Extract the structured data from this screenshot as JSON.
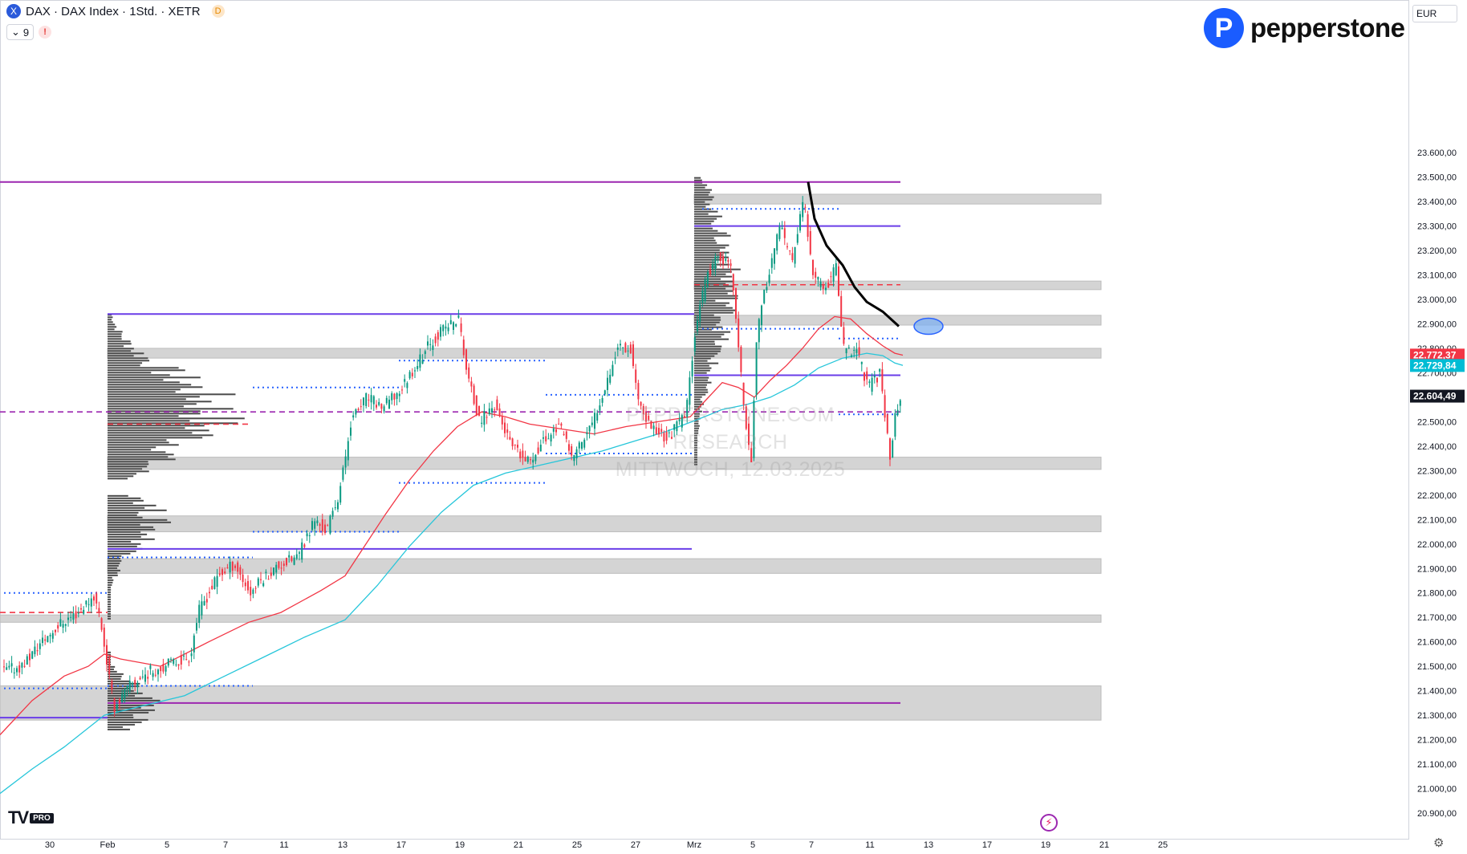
{
  "header": {
    "symbol_icon": "X",
    "title": "DAX · DAX Index · 1Std. · XETR",
    "delay_badge": "D",
    "indicator_count": "9",
    "warning": "!"
  },
  "brand": {
    "logo_letter": "P",
    "name": "pepperstone"
  },
  "currency": "EUR",
  "watermark": {
    "line1": "PEPPERSTONE.COM RESEARCH",
    "line2": "MITTWOCH, 12.03.2025"
  },
  "tv_logo": {
    "mark": "TV",
    "pro": "PRO"
  },
  "icons": {
    "indicator_button": "indicator-icon",
    "gear": "gear-icon",
    "bolt": "bolt-icon"
  },
  "chart_data": {
    "type": "candlestick",
    "ylim": [
      20850,
      23650
    ],
    "y_ticks": [
      "20.900,00",
      "21.000,00",
      "21.100,00",
      "21.200,00",
      "21.300,00",
      "21.400,00",
      "21.500,00",
      "21.600,00",
      "21.700,00",
      "21.800,00",
      "21.900,00",
      "22.000,00",
      "22.100,00",
      "22.200,00",
      "22.300,00",
      "22.400,00",
      "22.500,00",
      "22.600,00",
      "22.700,00",
      "22.800,00",
      "22.900,00",
      "23.000,00",
      "23.100,00",
      "23.200,00",
      "23.300,00",
      "23.400,00",
      "23.500,00",
      "23.600,00"
    ],
    "y_tick_values": [
      20900,
      21000,
      21100,
      21200,
      21300,
      21400,
      21500,
      21600,
      21700,
      21800,
      21900,
      22000,
      22100,
      22200,
      22300,
      22400,
      22500,
      22600,
      22700,
      22800,
      22900,
      23000,
      23100,
      23200,
      23300,
      23400,
      23500,
      23600
    ],
    "x_ticks": [
      "30",
      "Feb",
      "5",
      "7",
      "11",
      "13",
      "17",
      "19",
      "21",
      "25",
      "27",
      "Mrz",
      "5",
      "7",
      "11",
      "13",
      "17",
      "19",
      "21",
      "25"
    ],
    "x_tick_positions": [
      62,
      134,
      208,
      281,
      354,
      427,
      500,
      573,
      646,
      719,
      792,
      865,
      938,
      1011,
      1084,
      1157,
      1230,
      1303,
      1376,
      1449
    ],
    "price_labels": [
      {
        "text": "22.772,37",
        "value": 22772.37,
        "color": "#f23645"
      },
      {
        "text": "22.729,84",
        "value": 22729.84,
        "color": "#00bcd4"
      },
      {
        "text": "22.604,49",
        "value": 22604.49,
        "color": "#131722"
      }
    ],
    "price_path": [
      [
        5,
        21480
      ],
      [
        30,
        21500
      ],
      [
        55,
        21600
      ],
      [
        80,
        21680
      ],
      [
        100,
        21720
      ],
      [
        120,
        21790
      ],
      [
        128,
        21700
      ],
      [
        145,
        21330
      ],
      [
        165,
        21420
      ],
      [
        190,
        21480
      ],
      [
        215,
        21510
      ],
      [
        240,
        21540
      ],
      [
        250,
        21720
      ],
      [
        275,
        21870
      ],
      [
        295,
        21920
      ],
      [
        315,
        21800
      ],
      [
        330,
        21860
      ],
      [
        350,
        21910
      ],
      [
        375,
        21950
      ],
      [
        395,
        22100
      ],
      [
        410,
        22050
      ],
      [
        425,
        22200
      ],
      [
        432,
        22320
      ],
      [
        440,
        22500
      ],
      [
        460,
        22600
      ],
      [
        480,
        22560
      ],
      [
        500,
        22620
      ],
      [
        515,
        22700
      ],
      [
        535,
        22800
      ],
      [
        555,
        22880
      ],
      [
        575,
        22920
      ],
      [
        585,
        22700
      ],
      [
        600,
        22500
      ],
      [
        620,
        22570
      ],
      [
        640,
        22400
      ],
      [
        660,
        22330
      ],
      [
        680,
        22420
      ],
      [
        700,
        22490
      ],
      [
        715,
        22350
      ],
      [
        740,
        22480
      ],
      [
        760,
        22680
      ],
      [
        775,
        22820
      ],
      [
        790,
        22790
      ],
      [
        800,
        22550
      ],
      [
        815,
        22480
      ],
      [
        835,
        22430
      ],
      [
        850,
        22500
      ],
      [
        858,
        22530
      ],
      [
        870,
        22900
      ],
      [
        885,
        23100
      ],
      [
        900,
        23180
      ],
      [
        915,
        23120
      ],
      [
        930,
        22550
      ],
      [
        940,
        22330
      ],
      [
        945,
        22830
      ],
      [
        960,
        23100
      ],
      [
        975,
        23300
      ],
      [
        990,
        23150
      ],
      [
        1005,
        23420
      ],
      [
        1015,
        23100
      ],
      [
        1030,
        23040
      ],
      [
        1045,
        23130
      ],
      [
        1055,
        22780
      ],
      [
        1070,
        22800
      ],
      [
        1085,
        22640
      ],
      [
        1100,
        22700
      ],
      [
        1108,
        22480
      ],
      [
        1113,
        22330
      ],
      [
        1118,
        22520
      ],
      [
        1125,
        22600
      ]
    ],
    "ma_red": [
      [
        0,
        21220
      ],
      [
        40,
        21360
      ],
      [
        80,
        21460
      ],
      [
        110,
        21500
      ],
      [
        130,
        21550
      ],
      [
        150,
        21530
      ],
      [
        200,
        21500
      ],
      [
        260,
        21600
      ],
      [
        310,
        21680
      ],
      [
        350,
        21720
      ],
      [
        400,
        21810
      ],
      [
        430,
        21870
      ],
      [
        450,
        21970
      ],
      [
        480,
        22120
      ],
      [
        510,
        22260
      ],
      [
        540,
        22380
      ],
      [
        570,
        22480
      ],
      [
        600,
        22540
      ],
      [
        630,
        22520
      ],
      [
        660,
        22490
      ],
      [
        700,
        22470
      ],
      [
        740,
        22450
      ],
      [
        780,
        22480
      ],
      [
        820,
        22500
      ],
      [
        860,
        22520
      ],
      [
        880,
        22590
      ],
      [
        900,
        22660
      ],
      [
        920,
        22640
      ],
      [
        940,
        22600
      ],
      [
        960,
        22670
      ],
      [
        980,
        22730
      ],
      [
        1000,
        22800
      ],
      [
        1020,
        22880
      ],
      [
        1040,
        22930
      ],
      [
        1060,
        22920
      ],
      [
        1080,
        22860
      ],
      [
        1100,
        22810
      ],
      [
        1115,
        22780
      ],
      [
        1125,
        22772
      ]
    ],
    "ma_cyan": [
      [
        0,
        20980
      ],
      [
        40,
        21080
      ],
      [
        80,
        21170
      ],
      [
        130,
        21300
      ],
      [
        180,
        21340
      ],
      [
        230,
        21380
      ],
      [
        280,
        21460
      ],
      [
        330,
        21540
      ],
      [
        380,
        21620
      ],
      [
        430,
        21690
      ],
      [
        470,
        21830
      ],
      [
        510,
        21990
      ],
      [
        550,
        22130
      ],
      [
        590,
        22240
      ],
      [
        630,
        22290
      ],
      [
        670,
        22320
      ],
      [
        710,
        22350
      ],
      [
        750,
        22380
      ],
      [
        790,
        22420
      ],
      [
        830,
        22460
      ],
      [
        870,
        22510
      ],
      [
        900,
        22550
      ],
      [
        930,
        22570
      ],
      [
        960,
        22600
      ],
      [
        990,
        22650
      ],
      [
        1020,
        22720
      ],
      [
        1050,
        22760
      ],
      [
        1080,
        22780
      ],
      [
        1100,
        22770
      ],
      [
        1115,
        22740
      ],
      [
        1125,
        22730
      ]
    ],
    "black_curve": [
      [
        1007,
        23480
      ],
      [
        1015,
        23330
      ],
      [
        1030,
        23220
      ],
      [
        1050,
        23140
      ],
      [
        1065,
        23050
      ],
      [
        1080,
        22990
      ],
      [
        1100,
        22950
      ],
      [
        1120,
        22890
      ]
    ],
    "zones": [
      {
        "y0": 23390,
        "y1": 23430,
        "x0": 865,
        "x1": 1372
      },
      {
        "y0": 23040,
        "y1": 23075,
        "x0": 865,
        "x1": 1372
      },
      {
        "y0": 22895,
        "y1": 22935,
        "x0": 865,
        "x1": 1372
      },
      {
        "y0": 22760,
        "y1": 22800,
        "x0": 134,
        "x1": 1372
      },
      {
        "y0": 22305,
        "y1": 22355,
        "x0": 134,
        "x1": 1372
      },
      {
        "y0": 22050,
        "y1": 22115,
        "x0": 134,
        "x1": 1372
      },
      {
        "y0": 21880,
        "y1": 21940,
        "x0": 134,
        "x1": 1372
      },
      {
        "y0": 21680,
        "y1": 21710,
        "x0": 0,
        "x1": 1372
      },
      {
        "y0": 21280,
        "y1": 21420,
        "x0": 0,
        "x1": 1372
      }
    ],
    "purple_lines": [
      {
        "y": 23480,
        "x0": 0,
        "x1": 1122,
        "color": "#9c27b0"
      },
      {
        "y": 23300,
        "x0": 865,
        "x1": 1122,
        "color": "#6a3de8"
      },
      {
        "y": 22940,
        "x0": 134,
        "x1": 865,
        "color": "#6a3de8"
      },
      {
        "y": 22690,
        "x0": 865,
        "x1": 1122,
        "color": "#6a3de8"
      },
      {
        "y": 21980,
        "x0": 134,
        "x1": 862,
        "color": "#6a3de8"
      },
      {
        "y": 21350,
        "x0": 134,
        "x1": 1122,
        "color": "#9c27b0"
      },
      {
        "y": 21290,
        "x0": 0,
        "x1": 134,
        "color": "#6a3de8"
      }
    ],
    "dashed_levels": [
      {
        "y": 22540,
        "x0": 0,
        "x1": 1122,
        "color": "#9c27b0"
      },
      {
        "y": 22490,
        "x0": 134,
        "x1": 310,
        "color": "#f23645"
      },
      {
        "y": 23060,
        "x0": 865,
        "x1": 1122,
        "color": "#f23645"
      },
      {
        "y": 21720,
        "x0": 0,
        "x1": 134,
        "color": "#f23645"
      }
    ],
    "dotted_levels": [
      {
        "y": 23370,
        "x0": 875,
        "x1": 1045
      },
      {
        "y": 22880,
        "x0": 875,
        "x1": 1045
      },
      {
        "y": 22840,
        "x0": 1045,
        "x1": 1122
      },
      {
        "y": 22750,
        "x0": 497,
        "x1": 680
      },
      {
        "y": 22640,
        "x0": 315,
        "x1": 497
      },
      {
        "y": 22610,
        "x0": 680,
        "x1": 865
      },
      {
        "y": 22530,
        "x0": 1045,
        "x1": 1122
      },
      {
        "y": 22370,
        "x0": 680,
        "x1": 865
      },
      {
        "y": 22250,
        "x0": 497,
        "x1": 680
      },
      {
        "y": 22050,
        "x0": 315,
        "x1": 497
      },
      {
        "y": 21945,
        "x0": 134,
        "x1": 315
      },
      {
        "y": 21800,
        "x0": 5,
        "x1": 134
      },
      {
        "y": 21420,
        "x0": 134,
        "x1": 315
      },
      {
        "y": 21410,
        "x0": 5,
        "x1": 134
      }
    ],
    "volume_profiles": [
      {
        "x0": 134,
        "y_top": 22940,
        "y_bottom": 22270,
        "max_w": 180,
        "poc": 22540
      },
      {
        "x0": 134,
        "y_top": 22200,
        "y_bottom": 21690,
        "max_w": 80,
        "poc": 22100
      },
      {
        "x0": 134,
        "y_top": 21560,
        "y_bottom": 21240,
        "max_w": 75,
        "poc": 21350
      },
      {
        "x0": 865,
        "y_top": 23500,
        "y_bottom": 22320,
        "max_w": 60,
        "poc": 23060
      }
    ],
    "ellipse": {
      "x": 1157,
      "y": 22890
    }
  }
}
